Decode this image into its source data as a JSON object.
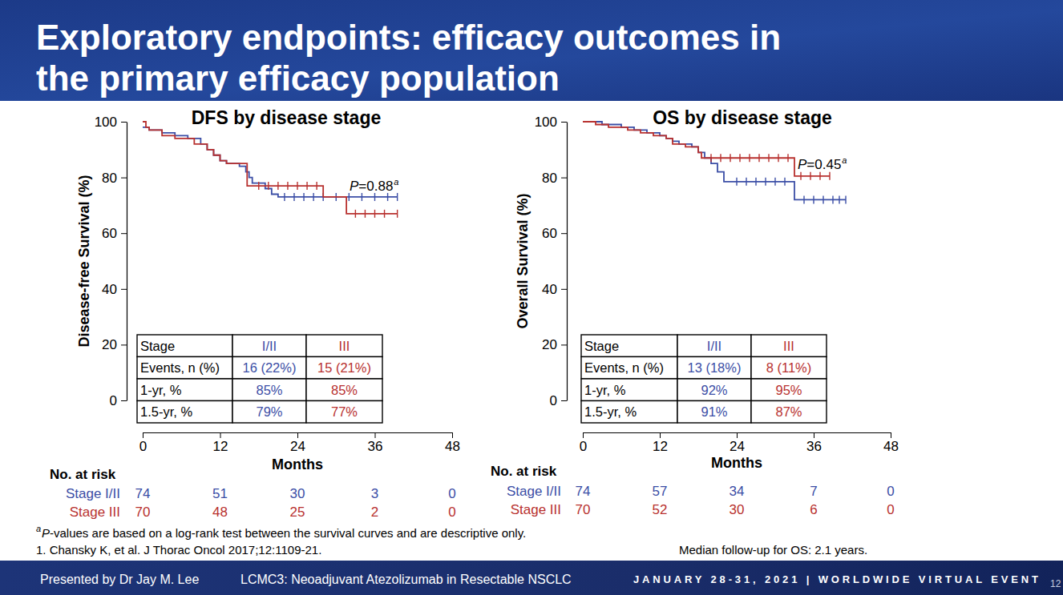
{
  "slide": {
    "title": [
      "Exploratory endpoints: efficacy outcomes in",
      "the primary efficacy population"
    ],
    "footnote_mark": "a",
    "footnotes": [
      "P-values are based on a log-rank test between the survival curves and are descriptive only.",
      "1. Chansky K, et al. J Thorac Oncol 2017;12:1109-21."
    ],
    "note": "Median follow-up for OS: 2.1 years.",
    "footer": {
      "presenter": "Presented by Dr Jay M. Lee",
      "study": "LCMC3: Neoadjuvant Atezolizumab in Resectable NSCLC",
      "event": "JANUARY 28-31, 2021 | WORLDWIDE VIRTUAL EVENT",
      "page": "12"
    }
  },
  "chart_data": [
    {
      "type": "line",
      "line_style": "step",
      "marker": "tick",
      "title": "DFS by disease stage",
      "x_label": "Months",
      "y_label": "Disease-free Survival (%)",
      "xlim": [
        0,
        48
      ],
      "xticks": [
        0,
        12,
        24,
        36,
        48
      ],
      "ylim": [
        0,
        100
      ],
      "yticks": [
        0,
        20,
        40,
        60,
        80,
        100
      ],
      "grid": false,
      "annotations": [
        {
          "text": "P=0.88",
          "note": "a"
        }
      ],
      "table": [
        [
          "Stage",
          "I/II",
          "III"
        ],
        [
          "Events, n (%)",
          "16 (22%)",
          "15 (21%)"
        ],
        [
          "1-yr, %",
          "85%",
          "85%"
        ],
        [
          "1.5-yr, %",
          "79%",
          "77%"
        ]
      ],
      "at_risk_title": "No. at risk",
      "series": [
        {
          "name": "Stage I/II",
          "color": "#3b4ea6",
          "x": [
            0,
            1,
            3,
            5,
            7,
            9,
            10,
            11,
            12,
            13,
            15,
            16,
            16.5,
            17,
            19,
            20,
            21,
            39.5
          ],
          "values": [
            98,
            97,
            96,
            95,
            94,
            92,
            90,
            88,
            86,
            85,
            84,
            82,
            80,
            78,
            76,
            74,
            73,
            73
          ],
          "censor_x": [
            22,
            23.5,
            25,
            26.5,
            28,
            30,
            32,
            34,
            36,
            38,
            39.5
          ],
          "censor_values": [
            73,
            73,
            73,
            73,
            73,
            73,
            73,
            73,
            73,
            73,
            73
          ],
          "at_risk": [
            74,
            51,
            30,
            3,
            0
          ]
        },
        {
          "name": "Stage III",
          "color": "#b8312f",
          "x": [
            0,
            0.5,
            1,
            3,
            5,
            8,
            10,
            11,
            12,
            13,
            16.2,
            28,
            31.6,
            39.5
          ],
          "values": [
            100,
            98,
            97,
            95,
            94,
            92,
            90,
            88,
            86,
            85,
            77,
            73,
            67,
            67
          ],
          "censor_x": [
            18,
            19.5,
            21,
            22.5,
            24,
            25.5,
            27,
            33,
            34.5,
            36,
            37.5,
            39.5
          ],
          "censor_values": [
            77,
            77,
            77,
            77,
            77,
            77,
            77,
            67,
            67,
            67,
            67,
            67
          ],
          "at_risk": [
            70,
            48,
            25,
            2,
            0
          ]
        }
      ]
    },
    {
      "type": "line",
      "line_style": "step",
      "marker": "tick",
      "title": "OS by disease stage",
      "x_label": "Months",
      "y_label": "Overall Survival (%)",
      "xlim": [
        0,
        48
      ],
      "xticks": [
        0,
        12,
        24,
        36,
        48
      ],
      "ylim": [
        0,
        100
      ],
      "yticks": [
        0,
        20,
        40,
        60,
        80,
        100
      ],
      "grid": false,
      "annotations": [
        {
          "text": "P=0.45",
          "note": "a"
        }
      ],
      "table": [
        [
          "Stage",
          "I/II",
          "III"
        ],
        [
          "Events, n (%)",
          "13 (18%)",
          "8 (11%)"
        ],
        [
          "1-yr, %",
          "92%",
          "95%"
        ],
        [
          "1.5-yr, %",
          "91%",
          "87%"
        ]
      ],
      "at_risk_title": "No. at risk",
      "series": [
        {
          "name": "Stage I/II",
          "color": "#3b4ea6",
          "x": [
            0,
            3,
            6,
            8,
            10,
            12,
            13,
            14,
            15,
            17,
            18,
            19,
            20,
            21,
            22,
            33,
            41
          ],
          "values": [
            100,
            99,
            98,
            97,
            96,
            95,
            94,
            93,
            92,
            91,
            89,
            87,
            85,
            82,
            78.5,
            72,
            72
          ],
          "censor_x": [
            24,
            25.5,
            27,
            28.5,
            30,
            31.5,
            34.5,
            36,
            37.5,
            39,
            40,
            41
          ],
          "censor_values": [
            78.5,
            78.5,
            78.5,
            78.5,
            78.5,
            78.5,
            72,
            72,
            72,
            72,
            72,
            72
          ],
          "at_risk": [
            74,
            57,
            34,
            7,
            0
          ]
        },
        {
          "name": "Stage III",
          "color": "#b8312f",
          "x": [
            0,
            2,
            4,
            7,
            9,
            11,
            13,
            14,
            16,
            18,
            18.5,
            33,
            38.5
          ],
          "values": [
            100,
            99,
            98,
            97,
            96,
            95,
            94,
            92,
            91,
            89,
            87,
            80.5,
            80.5
          ],
          "censor_x": [
            20,
            21.5,
            23,
            24.5,
            26,
            27.5,
            29,
            30.5,
            32,
            34,
            35.5,
            37,
            38.5
          ],
          "censor_values": [
            87,
            87,
            87,
            87,
            87,
            87,
            87,
            87,
            87,
            80.5,
            80.5,
            80.5,
            80.5
          ],
          "at_risk": [
            70,
            52,
            30,
            6,
            0
          ]
        }
      ]
    }
  ]
}
